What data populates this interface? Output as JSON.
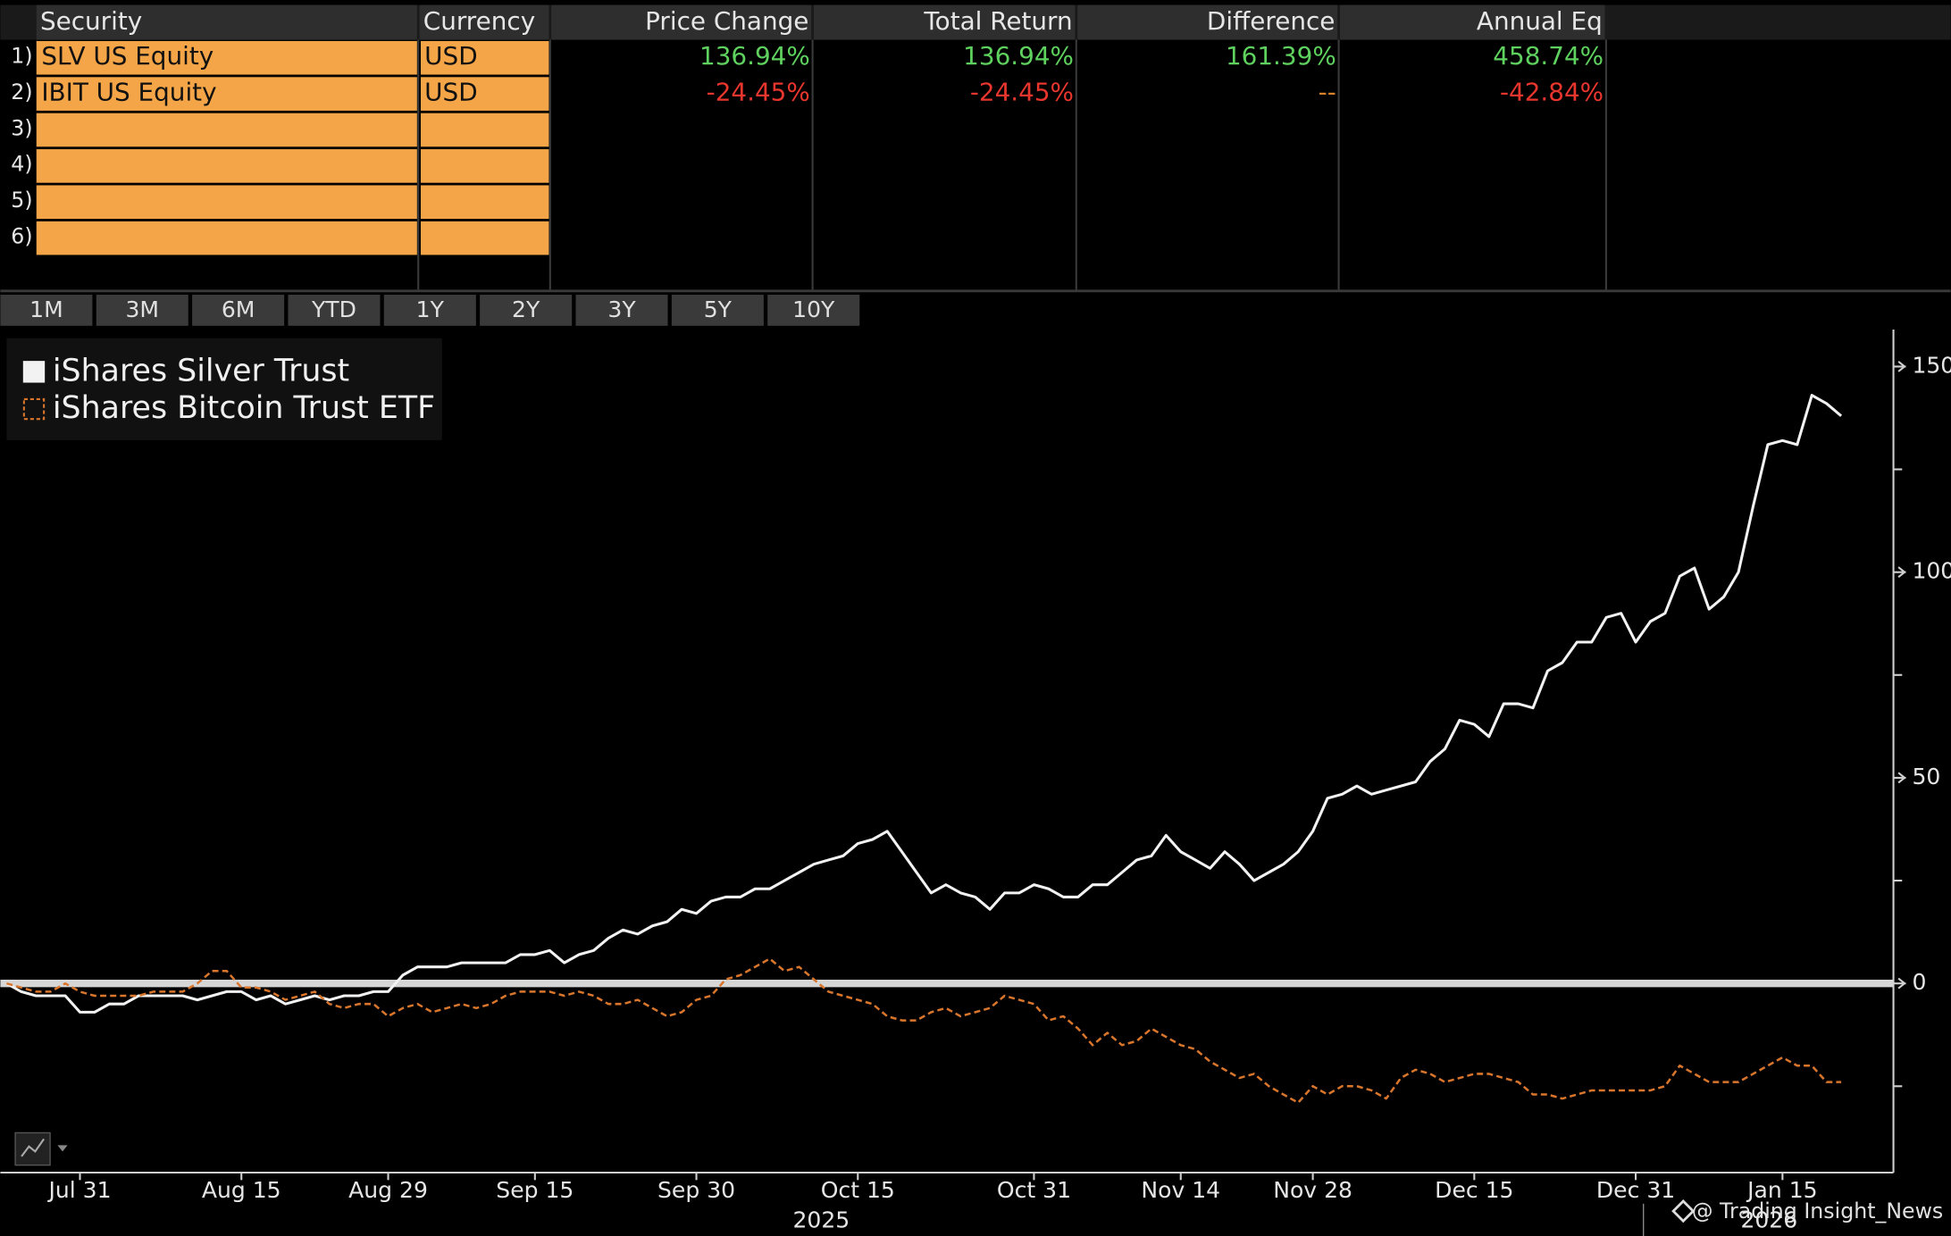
{
  "table": {
    "columns": [
      "Security",
      "Currency",
      "Price Change",
      "Total Return",
      "Difference",
      "Annual Eq"
    ],
    "rows": [
      {
        "index": "1)",
        "cells": [
          "SLV US Equity",
          "USD",
          "136.94%",
          "136.94%",
          "161.39%",
          "458.74%"
        ],
        "colors": [
          "#5ed15e",
          "#5ed15e",
          "#5ed15e",
          "#5ed15e"
        ]
      },
      {
        "index": "2)",
        "cells": [
          "IBIT US Equity",
          "USD",
          "-24.45%",
          "-24.45%",
          "--",
          "-42.84%"
        ],
        "colors": [
          "#e8362e",
          "#e8362e",
          "#d9822b",
          "#e8362e"
        ]
      },
      {
        "index": "3)"
      },
      {
        "index": "4)"
      },
      {
        "index": "5)"
      },
      {
        "index": "6)"
      }
    ],
    "input_color": "#f4a547"
  },
  "period_buttons": [
    "1M",
    "3M",
    "6M",
    "YTD",
    "1Y",
    "2Y",
    "3Y",
    "5Y",
    "10Y"
  ],
  "chart_data": {
    "type": "line",
    "categories": [
      null,
      null,
      null,
      null,
      null,
      "Jul 31",
      null,
      null,
      null,
      null,
      null,
      null,
      null,
      null,
      null,
      null,
      "Aug 15",
      null,
      null,
      null,
      null,
      null,
      null,
      null,
      null,
      null,
      "Aug 29",
      null,
      null,
      null,
      null,
      null,
      null,
      null,
      null,
      null,
      "Sep 15",
      null,
      null,
      null,
      null,
      null,
      null,
      null,
      null,
      null,
      null,
      "Sep 30",
      null,
      null,
      null,
      null,
      null,
      null,
      null,
      null,
      null,
      null,
      "Oct 15",
      null,
      null,
      null,
      null,
      null,
      null,
      null,
      null,
      null,
      null,
      null,
      "Oct 31",
      null,
      null,
      null,
      null,
      null,
      null,
      null,
      null,
      null,
      "Nov 14",
      null,
      null,
      null,
      null,
      null,
      null,
      null,
      null,
      "Nov 28",
      null,
      null,
      null,
      null,
      null,
      null,
      null,
      null,
      null,
      null,
      "Dec 15",
      null,
      null,
      null,
      null,
      null,
      null,
      null,
      null,
      null,
      null,
      "Dec 31",
      null,
      null,
      null,
      null,
      null,
      null,
      null,
      null,
      null,
      "Jan 15",
      null,
      null,
      null,
      null
    ],
    "year_labels": [
      "2025",
      "2026"
    ],
    "series": [
      {
        "name": "iShares Silver Trust",
        "color": "#f2f2f2",
        "style": "solid",
        "values": [
          0,
          -2,
          -3,
          -3,
          -3,
          -7,
          -7,
          -5,
          -5,
          -3,
          -3,
          -3,
          -3,
          -4,
          -3,
          -2,
          -2,
          -4,
          -3,
          -5,
          -4,
          -3,
          -4,
          -3,
          -3,
          -2,
          -2,
          2,
          4,
          4,
          4,
          5,
          5,
          5,
          5,
          7,
          7,
          8,
          5,
          7,
          8,
          11,
          13,
          12,
          14,
          15,
          18,
          17,
          20,
          21,
          21,
          23,
          23,
          25,
          27,
          29,
          30,
          31,
          34,
          35,
          37,
          32,
          27,
          22,
          24,
          22,
          21,
          18,
          22,
          22,
          24,
          23,
          21,
          21,
          24,
          24,
          27,
          30,
          31,
          36,
          32,
          30,
          28,
          32,
          29,
          25,
          27,
          29,
          32,
          37,
          45,
          46,
          48,
          46,
          47,
          48,
          49,
          54,
          57,
          64,
          63,
          60,
          68,
          68,
          67,
          76,
          78,
          83,
          83,
          89,
          90,
          83,
          88,
          90,
          99,
          101,
          91,
          94,
          100,
          116,
          131,
          132,
          131,
          143,
          141,
          138
        ]
      },
      {
        "name": "iShares Bitcoin Trust ETF",
        "color": "#d9762c",
        "style": "dashed",
        "values": [
          0,
          -1,
          -2,
          -2,
          0,
          -2,
          -3,
          -3,
          -3,
          -3,
          -2,
          -2,
          -2,
          0,
          3,
          3,
          -1,
          -1,
          -2,
          -4,
          -3,
          -2,
          -5,
          -6,
          -5,
          -5,
          -8,
          -6,
          -5,
          -7,
          -6,
          -5,
          -6,
          -5,
          -3,
          -2,
          -2,
          -2,
          -3,
          -2,
          -3,
          -5,
          -5,
          -4,
          -6,
          -8,
          -7,
          -4,
          -3,
          1,
          2,
          4,
          6,
          3,
          4,
          1,
          -2,
          -3,
          -4,
          -5,
          -8,
          -9,
          -9,
          -7,
          -6,
          -8,
          -7,
          -6,
          -3,
          -4,
          -5,
          -9,
          -8,
          -11,
          -15,
          -12,
          -15,
          -14,
          -11,
          -13,
          -15,
          -16,
          -19,
          -21,
          -23,
          -22,
          -25,
          -27,
          -29,
          -25,
          -27,
          -25,
          -25,
          -26,
          -28,
          -23,
          -21,
          -22,
          -24,
          -23,
          -22,
          -22,
          -23,
          -24,
          -27,
          -27,
          -28,
          -27,
          -26,
          -26,
          -26,
          -26,
          -26,
          -25,
          -20,
          -22,
          -24,
          -24,
          -24,
          -22,
          -20,
          -18,
          -20,
          -20,
          -24,
          -24
        ]
      }
    ],
    "ylim": [
      -46,
      159
    ],
    "yticks": [
      0,
      50,
      100,
      150
    ],
    "yminor_ticks": [
      -25,
      25,
      75,
      125
    ],
    "y_axis_side": "right",
    "zero_line": true
  },
  "watermark": "@ Trading Insight_News"
}
